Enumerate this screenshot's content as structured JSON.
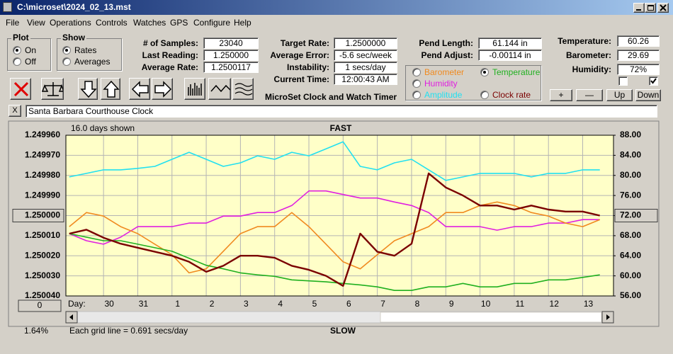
{
  "window": {
    "title": "C:\\microset\\2024_02_13.mst",
    "menu": [
      "File",
      "View",
      "Operations",
      "Controls",
      "Watches",
      "GPS",
      "Configure",
      "Help"
    ]
  },
  "plot_group": {
    "label": "Plot",
    "options": [
      "On",
      "Off"
    ],
    "selected": 0
  },
  "show_group": {
    "label": "Show",
    "options": [
      "Rates",
      "Averages"
    ],
    "selected": 0
  },
  "readings": [
    {
      "label": "# of Samples:",
      "value": "23040"
    },
    {
      "label": "Last Reading:",
      "value": "1.250000"
    },
    {
      "label": "Average Rate:",
      "value": "1.2500117"
    }
  ],
  "timing": [
    {
      "label": "Target Rate:",
      "value": "1.2500000"
    },
    {
      "label": "Average Error:",
      "value": "-5.6 sec/week"
    },
    {
      "label": "Instability:",
      "value": "1 secs/day"
    },
    {
      "label": "Current Time:",
      "value": "12:00:43 AM"
    }
  ],
  "pendulum": [
    {
      "label": "Pend Length:",
      "value": "61.144 in"
    },
    {
      "label": "Pend Adjust:",
      "value": "-0.00114 in"
    }
  ],
  "environment": [
    {
      "label": "Temperature:",
      "value": "60.26"
    },
    {
      "label": "Barometer:",
      "value": "29.69"
    },
    {
      "label": "Humidity:",
      "value": "72%"
    }
  ],
  "checkboxes": [
    false,
    true
  ],
  "app_title": "MicroSet Clock and Watch Timer",
  "adjust_buttons": [
    "+",
    "—",
    "Up",
    "Down"
  ],
  "clock": {
    "close": "X",
    "name": "Santa Barbara Courthouse Clock"
  },
  "chart_data": {
    "type": "line",
    "days_shown": "16.0 days shown",
    "top_label": "FAST",
    "bottom_label": "SLOW",
    "x_label": "Day:",
    "grid_note": "Each grid line = 0.691 secs/day",
    "percent": "1.64%",
    "scroll_value": "0",
    "x": [
      0,
      0.5,
      1,
      1.5,
      2,
      2.5,
      3,
      3.5,
      4,
      4.5,
      5,
      5.5,
      6,
      6.5,
      7,
      7.5,
      8,
      8.5,
      9,
      9.5,
      10,
      10.5,
      11,
      11.5,
      12,
      12.5,
      13,
      13.5,
      14,
      14.5,
      15,
      15.5
    ],
    "xlim": [
      -0.1,
      15.9
    ],
    "xticks": [
      {
        "value": 1,
        "label": "30"
      },
      {
        "value": 2,
        "label": "31"
      },
      {
        "value": 3,
        "label": "1"
      },
      {
        "value": 4,
        "label": "2"
      },
      {
        "value": 5,
        "label": "3"
      },
      {
        "value": 6,
        "label": "4"
      },
      {
        "value": 7,
        "label": "5"
      },
      {
        "value": 8,
        "label": "6"
      },
      {
        "value": 9,
        "label": "7"
      },
      {
        "value": 10,
        "label": "8"
      },
      {
        "value": 11,
        "label": "9"
      },
      {
        "value": 12,
        "label": "10"
      },
      {
        "value": 13,
        "label": "11"
      },
      {
        "value": 14,
        "label": "12"
      },
      {
        "value": 15,
        "label": "13"
      }
    ],
    "ylim": [
      1.24996,
      1.25004
    ],
    "y_inverted": true,
    "yticks": [
      {
        "value": 1.24996,
        "label": "1.249960"
      },
      {
        "value": 1.24997,
        "label": "1.249970"
      },
      {
        "value": 1.24998,
        "label": "1.249980"
      },
      {
        "value": 1.24999,
        "label": "1.249990"
      },
      {
        "value": 1.25,
        "label": "1.250000"
      },
      {
        "value": 1.25001,
        "label": "1.250010"
      },
      {
        "value": 1.25002,
        "label": "1.250020"
      },
      {
        "value": 1.25003,
        "label": "1.250030"
      },
      {
        "value": 1.25004,
        "label": "1.250040"
      }
    ],
    "highlight_ytick": 4,
    "y2lim": [
      56,
      88
    ],
    "y2ticks": [
      {
        "value": 88,
        "label": "88.00"
      },
      {
        "value": 84,
        "label": "84.00"
      },
      {
        "value": 80,
        "label": "80.00"
      },
      {
        "value": 76,
        "label": "76.00"
      },
      {
        "value": 72,
        "label": "72.00"
      },
      {
        "value": 68,
        "label": "68.00"
      },
      {
        "value": 64,
        "label": "64.00"
      },
      {
        "value": 60,
        "label": "60.00"
      },
      {
        "value": 56,
        "label": "56.00"
      }
    ],
    "highlight_y2tick": 4,
    "grid": true,
    "selected_series": 1,
    "series": [
      {
        "name": "Barometer",
        "color": "#f08a20",
        "axis": "y2",
        "values": [
          69.8,
          72.6,
          71.9,
          69.8,
          68.4,
          66.3,
          64.2,
          60.6,
          61.4,
          64.9,
          68.4,
          69.8,
          69.8,
          72.6,
          69.8,
          66.3,
          62.8,
          61.4,
          64.2,
          67.0,
          68.4,
          69.8,
          72.6,
          72.6,
          74.0,
          74.7,
          74.0,
          72.6,
          71.9,
          70.5,
          69.8,
          71.2
        ]
      },
      {
        "name": "Temperature",
        "color": "#20b020",
        "axis": "y2",
        "values": [
          68.4,
          67.7,
          67.0,
          67.0,
          66.3,
          65.6,
          64.9,
          63.5,
          62.1,
          61.4,
          60.6,
          60.2,
          59.9,
          59.2,
          59.0,
          58.8,
          58.5,
          58.2,
          57.8,
          57.1,
          57.1,
          57.8,
          57.8,
          58.5,
          57.8,
          57.8,
          58.5,
          58.5,
          59.2,
          59.2,
          59.7,
          60.2
        ]
      },
      {
        "name": "Humidity",
        "color": "#e020e0",
        "axis": "y2",
        "values": [
          68.4,
          67.0,
          66.3,
          67.7,
          69.8,
          69.8,
          69.8,
          70.5,
          70.5,
          71.9,
          71.9,
          72.6,
          72.6,
          74.0,
          76.9,
          76.9,
          76.2,
          75.5,
          75.5,
          74.7,
          74.0,
          72.6,
          69.8,
          69.8,
          69.8,
          69.1,
          69.8,
          69.8,
          70.5,
          70.5,
          71.2,
          71.2
        ]
      },
      {
        "name": "Amplitude",
        "color": "#22e0f0",
        "axis": "y2",
        "values": [
          79.7,
          80.4,
          81.1,
          81.1,
          81.4,
          81.8,
          83.2,
          84.6,
          83.2,
          81.8,
          82.5,
          83.9,
          83.2,
          84.6,
          83.9,
          85.3,
          86.7,
          81.8,
          81.1,
          82.5,
          83.2,
          81.1,
          79.0,
          79.7,
          80.4,
          80.4,
          80.4,
          79.7,
          80.4,
          80.4,
          81.1,
          81.1
        ]
      },
      {
        "name": "Clock rate",
        "color": "#7a0000",
        "values": [
          1.250009,
          1.250007,
          1.250011,
          1.250014,
          1.250016,
          1.250018,
          1.25002,
          1.250023,
          1.250028,
          1.250025,
          1.25002,
          1.25002,
          1.250021,
          1.250025,
          1.250027,
          1.25003,
          1.250035,
          1.250009,
          1.250018,
          1.25002,
          1.250014,
          1.249979,
          1.249986,
          1.24999,
          1.249995,
          1.249995,
          1.249997,
          1.249995,
          1.249997,
          1.249998,
          1.249998,
          1.25
        ]
      }
    ]
  }
}
